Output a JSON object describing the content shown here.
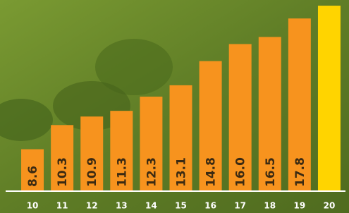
{
  "chart_data": {
    "type": "bar",
    "categories": [
      "10",
      "11",
      "12",
      "13",
      "14",
      "15",
      "16",
      "17",
      "18",
      "19",
      "20"
    ],
    "values": [
      8.6,
      10.3,
      10.9,
      11.3,
      12.3,
      13.1,
      14.8,
      16.0,
      16.5,
      17.8,
      18.7
    ],
    "value_labels": [
      "8.6",
      "10.3",
      "10.9",
      "11.3",
      "12.3",
      "13.1",
      "14.8",
      "16.0",
      "16.5",
      "17.8",
      null
    ],
    "colors": [
      "#f7931e",
      "#f7931e",
      "#f7931e",
      "#f7931e",
      "#f7931e",
      "#f7931e",
      "#f7931e",
      "#f7931e",
      "#f7931e",
      "#f7931e",
      "#ffd400"
    ],
    "ylim": [
      5.7,
      19.1
    ]
  }
}
